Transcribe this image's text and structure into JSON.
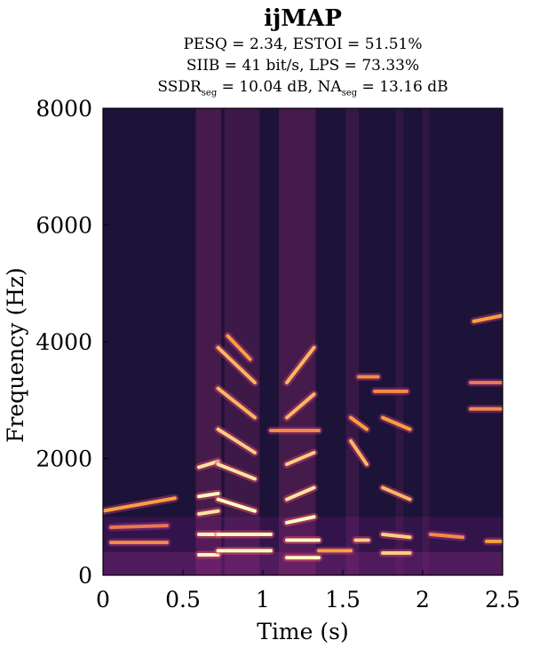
{
  "chart_data": {
    "type": "heatmap",
    "title": "ijMAP",
    "metrics": {
      "line1": "PESQ = 2.34, ESTOI = 51.51%",
      "line2": "SIIB = 41 bit/s, LPS = 73.33%",
      "line3_a": "SSDR",
      "line3_a_sub": "seg",
      "line3_b": " = 10.04 dB, NA",
      "line3_b_sub": "seg",
      "line3_c": " = 13.16 dB"
    },
    "xlabel": "Time (s)",
    "ylabel": "Frequency (Hz)",
    "xlim": [
      0,
      2.5
    ],
    "ylim": [
      0,
      8000
    ],
    "x_ticks": [
      0,
      0.5,
      1,
      1.5,
      2,
      2.5
    ],
    "x_tick_labels": [
      "0",
      "0.5",
      "1",
      "1.5",
      "2",
      "2.5"
    ],
    "y_ticks": [
      0,
      2000,
      4000,
      6000,
      8000
    ],
    "y_tick_labels": [
      "0",
      "2000",
      "4000",
      "6000",
      "8000"
    ],
    "colormap": [
      "#1c1036",
      "#3b0f70",
      "#8c2981",
      "#de4968",
      "#f7a13c",
      "#fcfdbf"
    ],
    "background_color": "#1d1237",
    "harmonic_tracks": [
      {
        "t0": 0.0,
        "t1": 0.45,
        "f": [
          1100,
          1320
        ],
        "level": 0.8
      },
      {
        "t0": 0.05,
        "t1": 0.4,
        "f": [
          820,
          850
        ],
        "level": 0.7
      },
      {
        "t0": 0.05,
        "t1": 0.4,
        "f": [
          560,
          560
        ],
        "level": 0.75
      },
      {
        "t0": 0.6,
        "t1": 0.72,
        "f": [
          1850,
          1950
        ],
        "level": 0.95
      },
      {
        "t0": 0.6,
        "t1": 0.72,
        "f": [
          1350,
          1400
        ],
        "level": 1.0
      },
      {
        "t0": 0.6,
        "t1": 0.72,
        "f": [
          1050,
          1100
        ],
        "level": 0.95
      },
      {
        "t0": 0.6,
        "t1": 0.72,
        "f": [
          700,
          700
        ],
        "level": 1.0
      },
      {
        "t0": 0.6,
        "t1": 0.72,
        "f": [
          350,
          350
        ],
        "level": 1.0
      },
      {
        "t0": 0.72,
        "t1": 0.95,
        "f": [
          3900,
          3300
        ],
        "level": 0.85
      },
      {
        "t0": 0.72,
        "t1": 0.95,
        "f": [
          3200,
          2700
        ],
        "level": 0.85
      },
      {
        "t0": 0.72,
        "t1": 0.95,
        "f": [
          2500,
          2100
        ],
        "level": 0.9
      },
      {
        "t0": 0.72,
        "t1": 0.95,
        "f": [
          1900,
          1650
        ],
        "level": 0.95
      },
      {
        "t0": 0.72,
        "t1": 0.95,
        "f": [
          1300,
          1100
        ],
        "level": 1.0
      },
      {
        "t0": 0.72,
        "t1": 1.05,
        "f": [
          700,
          700
        ],
        "level": 1.0
      },
      {
        "t0": 0.72,
        "t1": 1.05,
        "f": [
          420,
          420
        ],
        "level": 1.0
      },
      {
        "t0": 0.78,
        "t1": 0.92,
        "f": [
          4100,
          3700
        ],
        "level": 0.8
      },
      {
        "t0": 1.05,
        "t1": 1.35,
        "f": [
          2480,
          2480
        ],
        "level": 0.75
      },
      {
        "t0": 1.15,
        "t1": 1.32,
        "f": [
          3300,
          3900
        ],
        "level": 0.85
      },
      {
        "t0": 1.15,
        "t1": 1.32,
        "f": [
          2700,
          3100
        ],
        "level": 0.85
      },
      {
        "t0": 1.15,
        "t1": 1.32,
        "f": [
          1900,
          2100
        ],
        "level": 0.9
      },
      {
        "t0": 1.15,
        "t1": 1.32,
        "f": [
          1300,
          1500
        ],
        "level": 0.95
      },
      {
        "t0": 1.15,
        "t1": 1.32,
        "f": [
          900,
          1000
        ],
        "level": 1.0
      },
      {
        "t0": 1.15,
        "t1": 1.35,
        "f": [
          600,
          600
        ],
        "level": 1.0
      },
      {
        "t0": 1.15,
        "t1": 1.35,
        "f": [
          300,
          300
        ],
        "level": 1.0
      },
      {
        "t0": 1.35,
        "t1": 1.55,
        "f": [
          420,
          420
        ],
        "level": 0.8
      },
      {
        "t0": 1.55,
        "t1": 1.65,
        "f": [
          2300,
          1900
        ],
        "level": 0.85
      },
      {
        "t0": 1.55,
        "t1": 1.65,
        "f": [
          2700,
          2500
        ],
        "level": 0.8
      },
      {
        "t0": 1.58,
        "t1": 1.66,
        "f": [
          600,
          600
        ],
        "level": 0.9
      },
      {
        "t0": 1.6,
        "t1": 1.72,
        "f": [
          3400,
          3400
        ],
        "level": 0.75
      },
      {
        "t0": 1.7,
        "t1": 1.9,
        "f": [
          3150,
          3150
        ],
        "level": 0.75
      },
      {
        "t0": 1.75,
        "t1": 1.92,
        "f": [
          2700,
          2500
        ],
        "level": 0.8
      },
      {
        "t0": 1.75,
        "t1": 1.92,
        "f": [
          1500,
          1300
        ],
        "level": 0.85
      },
      {
        "t0": 1.75,
        "t1": 1.92,
        "f": [
          700,
          650
        ],
        "level": 0.9
      },
      {
        "t0": 1.75,
        "t1": 1.92,
        "f": [
          380,
          380
        ],
        "level": 0.9
      },
      {
        "t0": 2.05,
        "t1": 2.25,
        "f": [
          700,
          650
        ],
        "level": 0.75
      },
      {
        "t0": 2.3,
        "t1": 2.5,
        "f": [
          2850,
          2850
        ],
        "level": 0.75
      },
      {
        "t0": 2.3,
        "t1": 2.5,
        "f": [
          3300,
          3300
        ],
        "level": 0.7
      },
      {
        "t0": 2.32,
        "t1": 2.5,
        "f": [
          4350,
          4450
        ],
        "level": 0.8
      },
      {
        "t0": 2.4,
        "t1": 2.5,
        "f": [
          580,
          580
        ],
        "level": 0.8
      }
    ],
    "broadband_bursts": [
      {
        "t0": 0.58,
        "t1": 0.74,
        "level": 0.3
      },
      {
        "t0": 0.76,
        "t1": 0.98,
        "level": 0.25
      },
      {
        "t0": 1.1,
        "t1": 1.33,
        "level": 0.3
      },
      {
        "t0": 1.52,
        "t1": 1.6,
        "level": 0.2
      },
      {
        "t0": 1.83,
        "t1": 1.88,
        "level": 0.15
      },
      {
        "t0": 2.0,
        "t1": 2.04,
        "level": 0.15
      }
    ]
  }
}
